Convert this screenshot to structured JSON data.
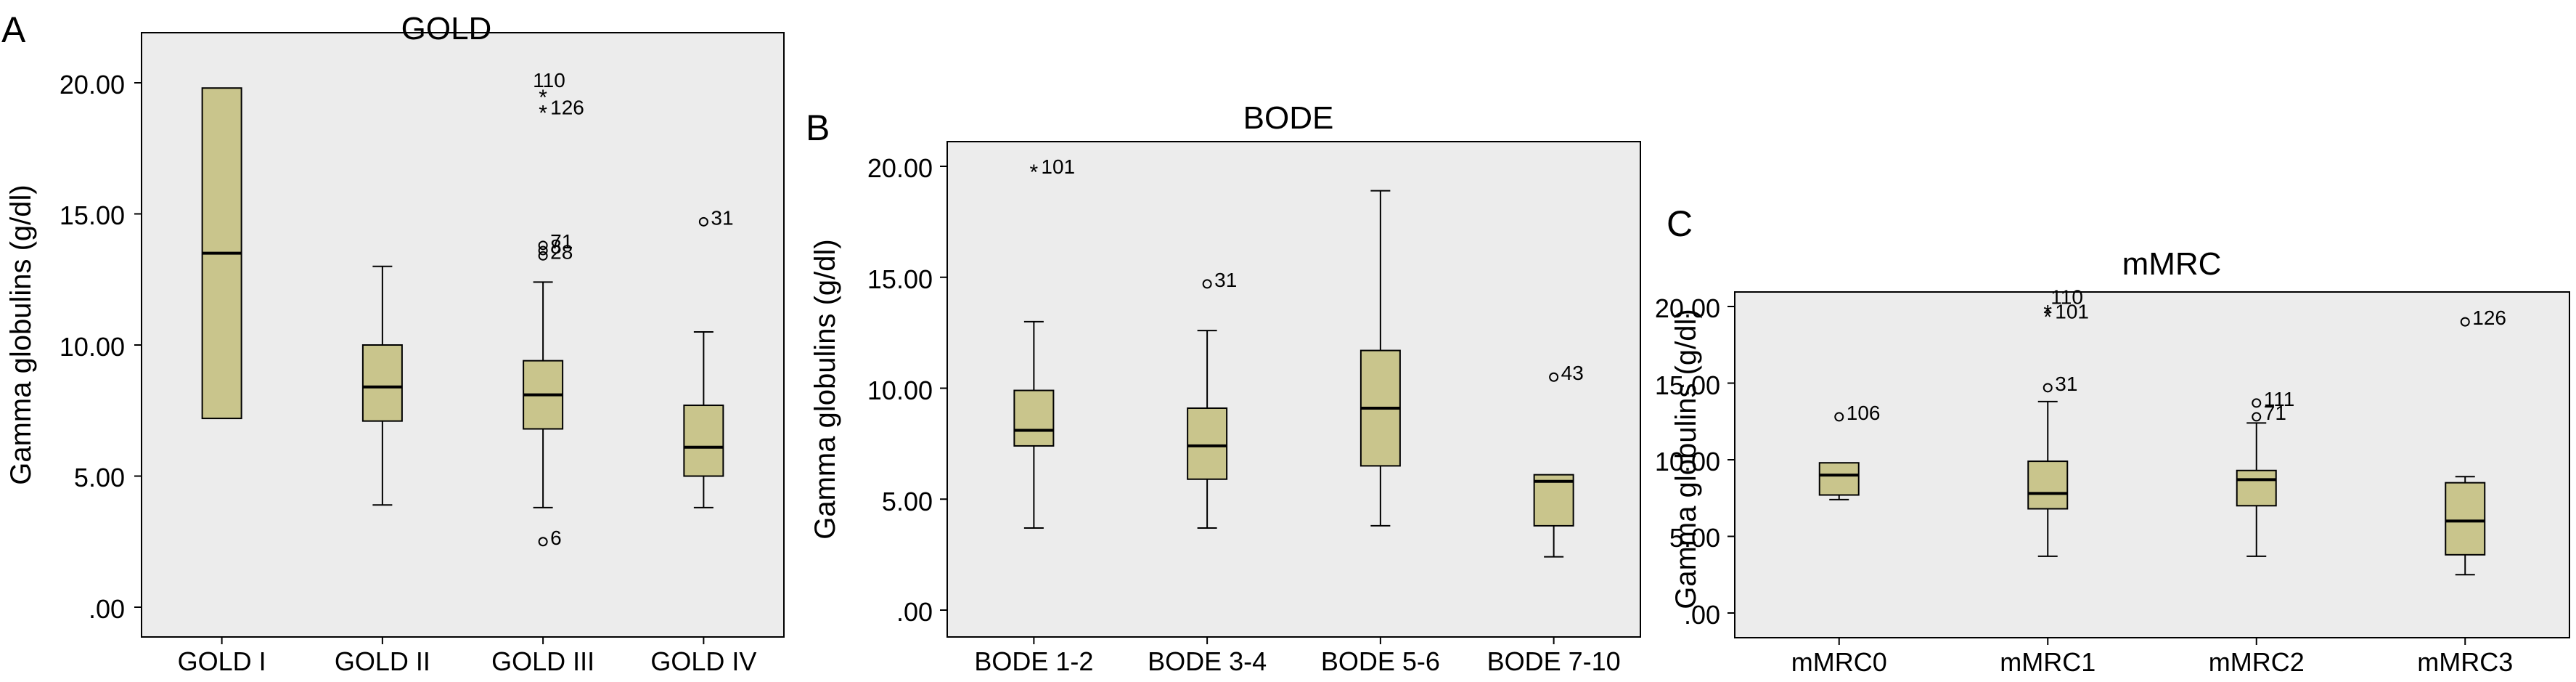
{
  "panels": [
    {
      "letter": "A",
      "title": "GOLD",
      "ylabel": "Gamma globulins (g/dl)",
      "y_ticks": [
        ".00",
        "5.00",
        "10.00",
        "15.00",
        "20.00"
      ],
      "colors": {
        "box_fill": "#c9c58c",
        "plot_bg": "#ececec"
      }
    },
    {
      "letter": "B",
      "title": "BODE",
      "ylabel": "Gamma globulins (g/dl)",
      "y_ticks": [
        ".00",
        "5.00",
        "10.00",
        "15.00",
        "20.00"
      ],
      "colors": {
        "box_fill": "#c9c58c",
        "plot_bg": "#ececec"
      }
    },
    {
      "letter": "C",
      "title": "mMRC",
      "ylabel": "Gamma globulins (g/dl)",
      "y_ticks": [
        ".00",
        "5.00",
        "10.00",
        "15.00",
        "20.00"
      ],
      "colors": {
        "box_fill": "#c9c58c",
        "plot_bg": "#ececec"
      }
    }
  ],
  "chart_data": [
    {
      "type": "boxplot",
      "title": "GOLD",
      "ylabel": "Gamma globulins (g/dl)",
      "ylim": [
        -1,
        21
      ],
      "y_ticks": [
        0,
        5,
        10,
        15,
        20
      ],
      "categories": [
        "GOLD I",
        "GOLD II",
        "GOLD III",
        "GOLD IV"
      ],
      "boxes": [
        {
          "whisker_low": 7.2,
          "q1": 7.2,
          "median": 13.5,
          "q3": 19.8,
          "whisker_high": 19.8,
          "outliers": []
        },
        {
          "whisker_low": 3.9,
          "q1": 7.1,
          "median": 8.4,
          "q3": 10.0,
          "whisker_high": 13.0,
          "outliers": []
        },
        {
          "whisker_low": 3.8,
          "q1": 6.8,
          "median": 8.1,
          "q3": 9.4,
          "whisker_high": 12.4,
          "outliers": [
            {
              "value": 19.5,
              "marker": "star",
              "label": "110",
              "label_pos": "above"
            },
            {
              "value": 18.9,
              "marker": "star",
              "label": "126",
              "label_pos": "right"
            },
            {
              "value": 13.8,
              "marker": "circle",
              "label": "71",
              "label_pos": "right"
            },
            {
              "value": 13.6,
              "marker": "circle",
              "label": "8",
              "label_pos": "right"
            },
            {
              "value": 13.4,
              "marker": "circle",
              "label": "28",
              "label_pos": "right"
            },
            {
              "value": 2.5,
              "marker": "circle",
              "label": "6",
              "label_pos": "right"
            }
          ]
        },
        {
          "whisker_low": 3.8,
          "q1": 5.0,
          "median": 6.1,
          "q3": 7.7,
          "whisker_high": 10.5,
          "outliers": [
            {
              "value": 14.7,
              "marker": "circle",
              "label": "31",
              "label_pos": "right"
            }
          ]
        }
      ]
    },
    {
      "type": "boxplot",
      "title": "BODE",
      "ylabel": "Gamma globulins (g/dl)",
      "ylim": [
        -1,
        21
      ],
      "y_ticks": [
        0,
        5,
        10,
        15,
        20
      ],
      "categories": [
        "BODE 1-2",
        "BODE 3-4",
        "BODE 5-6",
        "BODE 7-10"
      ],
      "boxes": [
        {
          "whisker_low": 3.7,
          "q1": 7.4,
          "median": 8.1,
          "q3": 9.9,
          "whisker_high": 13.0,
          "outliers": [
            {
              "value": 19.8,
              "marker": "star",
              "label": "101",
              "label_pos": "right"
            }
          ]
        },
        {
          "whisker_low": 3.7,
          "q1": 5.9,
          "median": 7.4,
          "q3": 9.1,
          "whisker_high": 12.6,
          "outliers": [
            {
              "value": 14.7,
              "marker": "circle",
              "label": "31",
              "label_pos": "right"
            }
          ]
        },
        {
          "whisker_low": 3.8,
          "q1": 6.5,
          "median": 9.1,
          "q3": 11.7,
          "whisker_high": 18.9,
          "outliers": []
        },
        {
          "whisker_low": 2.4,
          "q1": 3.8,
          "median": 5.8,
          "q3": 6.1,
          "whisker_high": 6.1,
          "outliers": [
            {
              "value": 10.5,
              "marker": "circle",
              "label": "43",
              "label_pos": "right"
            }
          ]
        }
      ]
    },
    {
      "type": "boxplot",
      "title": "mMRC",
      "ylabel": "Gamma globulins (g/dl)",
      "ylim": [
        -1,
        21
      ],
      "y_ticks": [
        0,
        5,
        10,
        15,
        20
      ],
      "categories": [
        "mMRC0",
        "mMRC1",
        "mMRC2",
        "mMRC3"
      ],
      "boxes": [
        {
          "whisker_low": 7.4,
          "q1": 7.7,
          "median": 9.0,
          "q3": 9.8,
          "whisker_high": 9.8,
          "outliers": [
            {
              "value": 12.8,
              "marker": "circle",
              "label": "106",
              "label_pos": "right"
            }
          ]
        },
        {
          "whisker_low": 3.7,
          "q1": 6.8,
          "median": 7.8,
          "q3": 9.9,
          "whisker_high": 13.8,
          "outliers": [
            {
              "value": 19.7,
              "marker": "star",
              "label": "110",
              "label_pos": "above-right"
            },
            {
              "value": 19.4,
              "marker": "star",
              "label": "101",
              "label_pos": "right"
            },
            {
              "value": 14.7,
              "marker": "circle",
              "label": "31",
              "label_pos": "right"
            }
          ]
        },
        {
          "whisker_low": 3.7,
          "q1": 7.0,
          "median": 8.7,
          "q3": 9.3,
          "whisker_high": 12.4,
          "outliers": [
            {
              "value": 13.7,
              "marker": "circle",
              "label": "111",
              "label_pos": "right"
            },
            {
              "value": 12.8,
              "marker": "circle",
              "label": "71",
              "label_pos": "right"
            }
          ]
        },
        {
          "whisker_low": 2.5,
          "q1": 3.8,
          "median": 6.0,
          "q3": 8.5,
          "whisker_high": 8.9,
          "outliers": [
            {
              "value": 19.0,
              "marker": "circle",
              "label": "126",
              "label_pos": "right"
            }
          ]
        }
      ]
    }
  ]
}
